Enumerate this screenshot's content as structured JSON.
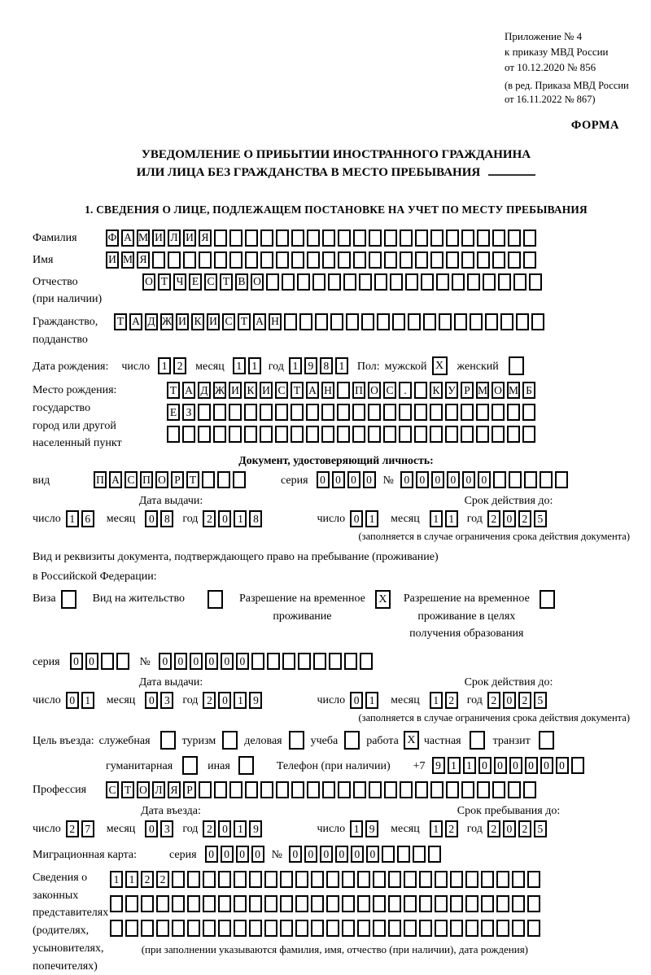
{
  "appendix": {
    "line1": "Приложение № 4",
    "line2": "к приказу МВД России",
    "line3": "от 10.12.2020 № 856",
    "line4": "(в ред. Приказа МВД России",
    "line5": "от 16.11.2022 № 867)",
    "forma": "ФОРМА"
  },
  "title": {
    "line1": "УВЕДОМЛЕНИЕ О ПРИБЫТИИ ИНОСТРАННОГО ГРАЖДАНИНА",
    "line2": "ИЛИ ЛИЦА БЕЗ ГРАЖДАНСТВА В МЕСТО ПРЕБЫВАНИЯ"
  },
  "section1": {
    "heading": "1. СВЕДЕНИЯ О ЛИЦЕ, ПОДЛЕЖАЩЕМ ПОСТАНОВКЕ НА УЧЕТ ПО МЕСТУ ПРЕБЫВАНИЯ"
  },
  "labels": {
    "day": "число",
    "month": "месяц",
    "year": "год",
    "series": "серия",
    "number": "№"
  },
  "surname": {
    "label": "Фамилия",
    "value": "ФАМИЛИЯ",
    "cells": 28
  },
  "name": {
    "label": "Имя",
    "value": "ИМЯ",
    "cells": 28
  },
  "patronymic": {
    "label1": "Отчество",
    "label2": "(при наличии)",
    "value": "ОТЧЕСТВО",
    "cells": 26
  },
  "citizenship": {
    "label1": "Гражданство,",
    "label2": "подданство",
    "value": "ТАДЖИКИСТАН",
    "cells": 28
  },
  "birth_date": {
    "label": "Дата рождения:",
    "day": {
      "value": "12",
      "cells": 2
    },
    "month": {
      "value": "11",
      "cells": 2
    },
    "year": {
      "value": "1981",
      "cells": 4
    },
    "sex_label": "Пол:",
    "male_label": "мужской",
    "male_checked": "X",
    "female_label": "женский",
    "female_checked": ""
  },
  "birth_place": {
    "label1": "Место рождения:",
    "label2": "государство",
    "label3": "город или другой",
    "label4": "населенный пункт",
    "row1": {
      "value": "ТАДЖИКИСТАН ПОС. КУРМОМБ",
      "cells": 24
    },
    "row2": {
      "value": "ЕЗ",
      "cells": 24
    },
    "row3": {
      "value": "",
      "cells": 24
    }
  },
  "identity_doc": {
    "heading": "Документ, удостоверяющий личность:",
    "kind_label": "вид",
    "kind": {
      "value": "ПАСПОРТ",
      "cells": 10
    },
    "series": {
      "value": "0000",
      "cells": 4
    },
    "number": {
      "value": "000000",
      "cells": 11
    },
    "issue_heading": "Дата выдачи:",
    "issue_day": {
      "value": "16",
      "cells": 2
    },
    "issue_month": {
      "value": "08",
      "cells": 2
    },
    "issue_year": {
      "value": "2018",
      "cells": 4
    },
    "valid_heading": "Срок действия до:",
    "valid_day": {
      "value": "01",
      "cells": 2
    },
    "valid_month": {
      "value": "11",
      "cells": 2
    },
    "valid_year": {
      "value": "2025",
      "cells": 4
    },
    "note": "(заполняется в случае ограничения срока действия документа)"
  },
  "residence_doc": {
    "line1": "Вид и реквизиты документа, подтверждающего право на пребывание (проживание)",
    "line2": "в Российской Федерации:",
    "visa_label": "Виза",
    "visa_checked": "",
    "permit_label": "Вид на жительство",
    "permit_checked": "",
    "temp_line1": "Разрешение на временное",
    "temp_line2": "проживание",
    "temp_checked": "X",
    "edu_line1": "Разрешение на временное",
    "edu_line2": "проживание в целях",
    "edu_line3": "получения образования",
    "edu_checked": "",
    "series": {
      "value": "00",
      "cells": 4
    },
    "number": {
      "value": "000000",
      "cells": 14
    },
    "issue_heading": "Дата выдачи:",
    "issue_day": {
      "value": "01",
      "cells": 2
    },
    "issue_month": {
      "value": "03",
      "cells": 2
    },
    "issue_year": {
      "value": "2019",
      "cells": 4
    },
    "valid_heading": "Срок действия до:",
    "valid_day": {
      "value": "01",
      "cells": 2
    },
    "valid_month": {
      "value": "12",
      "cells": 2
    },
    "valid_year": {
      "value": "2025",
      "cells": 4
    },
    "note": "(заполняется в случае ограничения срока действия документа)"
  },
  "purpose": {
    "label": "Цель въезда:",
    "opt1_label": "служебная",
    "opt1_checked": "",
    "opt2_label": "туризм",
    "opt2_checked": "",
    "opt3_label": "деловая",
    "opt3_checked": "",
    "opt4_label": "учеба",
    "opt4_checked": "",
    "opt5_label": "работа",
    "opt5_checked": "X",
    "opt6_label": "частная",
    "opt6_checked": "",
    "opt7_label": "транзит",
    "opt7_checked": "",
    "opt8_label": "гуманитарная",
    "opt8_checked": "",
    "opt9_label": "иная",
    "opt9_checked": "",
    "phone_label": "Телефон (при наличии)",
    "phone_prefix": "+7",
    "phone": {
      "value": "911000000",
      "cells": 10
    }
  },
  "profession": {
    "label": "Профессия",
    "value": "СТОЛЯР",
    "cells": 28
  },
  "entry": {
    "date_heading": "Дата въезда:",
    "date_day": {
      "value": "27",
      "cells": 2
    },
    "date_month": {
      "value": "03",
      "cells": 2
    },
    "date_year": {
      "value": "2019",
      "cells": 4
    },
    "stay_heading": "Срок пребывания до:",
    "stay_day": {
      "value": "19",
      "cells": 2
    },
    "stay_month": {
      "value": "12",
      "cells": 2
    },
    "stay_year": {
      "value": "2025",
      "cells": 4
    }
  },
  "migration_card": {
    "label": "Миграционная карта:",
    "series": {
      "value": "0000",
      "cells": 4
    },
    "number": {
      "value": "000000",
      "cells": 10
    }
  },
  "representatives": {
    "label1": "Сведения о",
    "label2": "законных",
    "label3": "представителях",
    "label4": "(родителях,",
    "label5": "усыновителях,",
    "label6": "попечителях)",
    "row1": {
      "value": "1122",
      "cells": 28
    },
    "row2": {
      "value": "",
      "cells": 28
    },
    "row3": {
      "value": "",
      "cells": 28
    },
    "note": "(при заполнении указываются фамилия, имя, отчество (при наличии), дата рождения)"
  }
}
